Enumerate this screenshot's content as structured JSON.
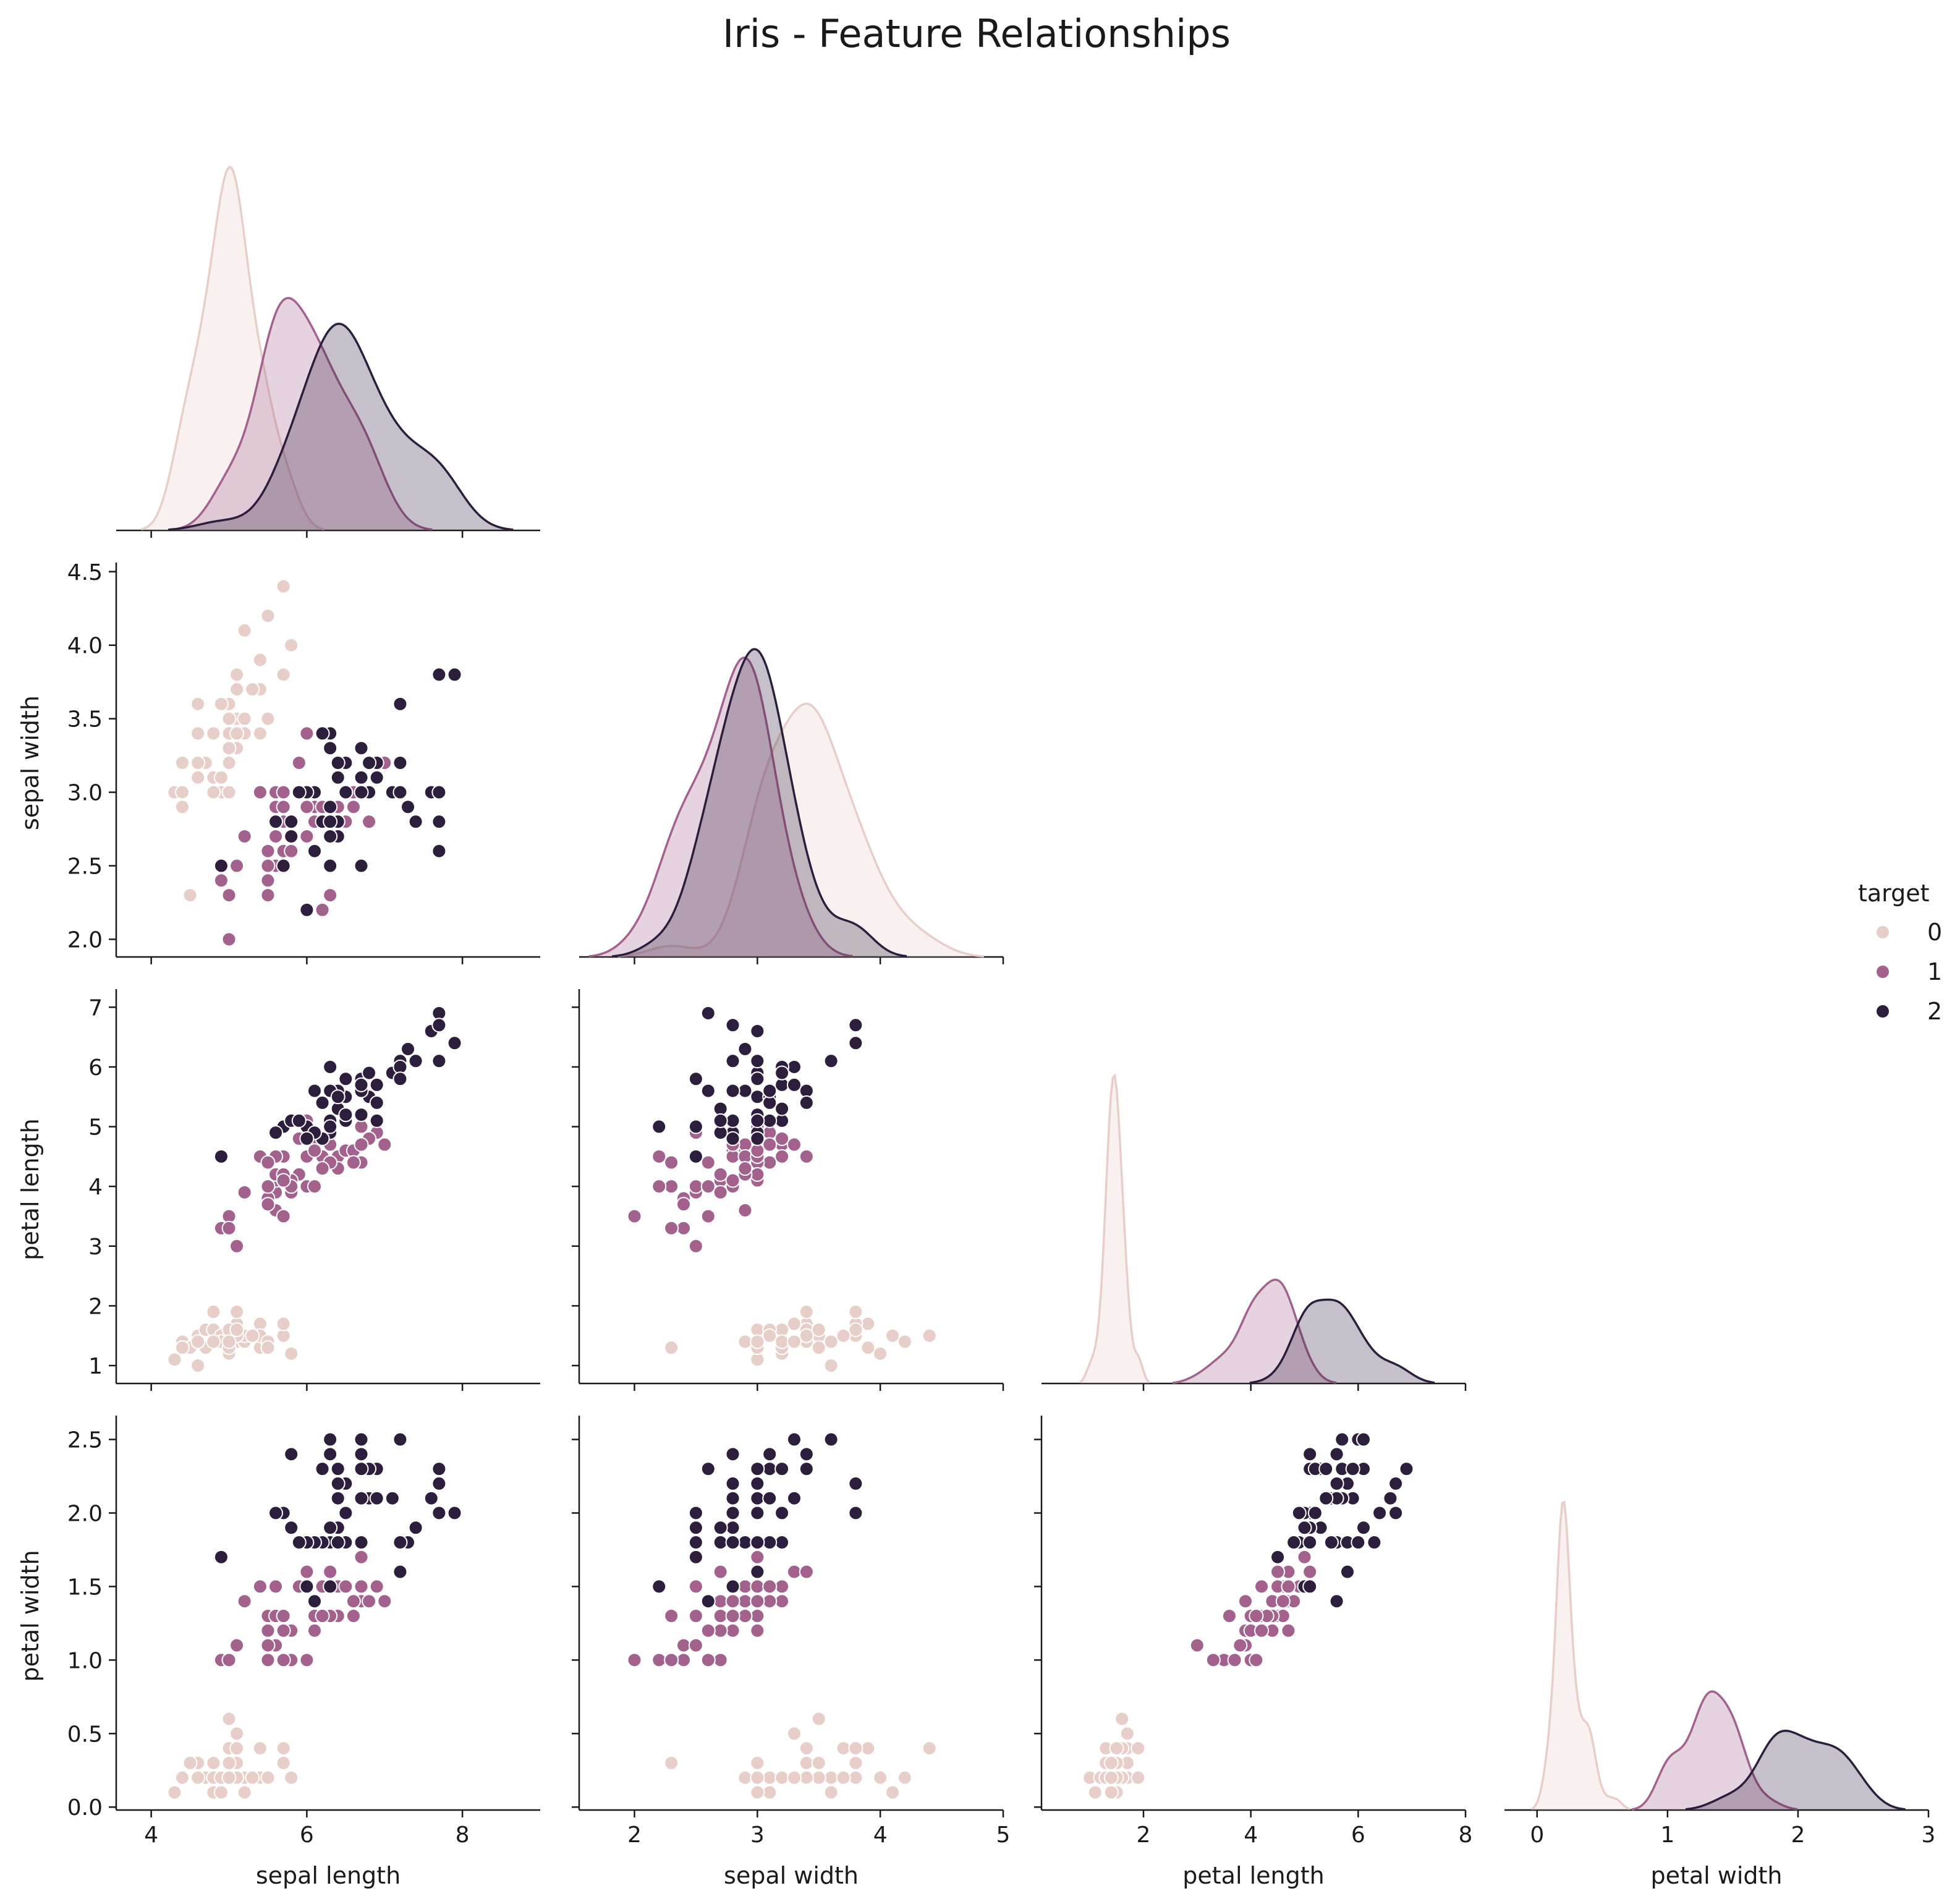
{
  "chart_data": {
    "type": "scatter",
    "title": "Iris - Feature Relationships",
    "variables": [
      "sepal length",
      "sepal width",
      "petal length",
      "petal width"
    ],
    "axis_ticks": {
      "sepal length": [
        4,
        6,
        8
      ],
      "sepal width": [
        2,
        3,
        4,
        5
      ],
      "petal length": [
        2,
        4,
        6,
        8
      ],
      "petal width": [
        0,
        1,
        2,
        3
      ]
    },
    "y_axis_ticks": {
      "sepal width": [
        "2.0",
        "2.5",
        "3.0",
        "3.5",
        "4.0",
        "4.5"
      ],
      "petal length": [
        "1",
        "2",
        "3",
        "4",
        "5",
        "6",
        "7"
      ],
      "petal width": [
        "0.0",
        "0.5",
        "1.0",
        "1.5",
        "2.0",
        "2.5"
      ]
    },
    "xlim": {
      "sepal length": [
        3.55,
        9.0
      ],
      "sepal width": [
        1.55,
        5.0
      ],
      "petal length": [
        0.1,
        8.0
      ],
      "petal width": [
        -0.25,
        3.0
      ]
    },
    "ylim": {
      "sepal width": [
        1.88,
        4.52
      ],
      "petal length": [
        0.7,
        7.2
      ],
      "petal width": [
        -0.02,
        2.62
      ]
    },
    "layout": "lower-triangle pair plot with KDE diagonal",
    "legend": {
      "title": "target",
      "position": "right",
      "entries": [
        {
          "label": "0",
          "color": "#e8cec8"
        },
        {
          "label": "1",
          "color": "#a3628e"
        },
        {
          "label": "2",
          "color": "#2d1e3e"
        }
      ]
    },
    "classes": [
      {
        "label": "0",
        "color": "#e8cec8",
        "points": [
          [
            5.1,
            3.5,
            1.4,
            0.2
          ],
          [
            4.9,
            3.0,
            1.4,
            0.2
          ],
          [
            4.7,
            3.2,
            1.3,
            0.2
          ],
          [
            4.6,
            3.1,
            1.5,
            0.2
          ],
          [
            5.0,
            3.6,
            1.4,
            0.2
          ],
          [
            5.4,
            3.9,
            1.7,
            0.4
          ],
          [
            4.6,
            3.4,
            1.4,
            0.3
          ],
          [
            5.0,
            3.4,
            1.5,
            0.2
          ],
          [
            4.4,
            2.9,
            1.4,
            0.2
          ],
          [
            4.9,
            3.1,
            1.5,
            0.1
          ],
          [
            5.4,
            3.7,
            1.5,
            0.2
          ],
          [
            4.8,
            3.4,
            1.6,
            0.2
          ],
          [
            4.8,
            3.0,
            1.4,
            0.1
          ],
          [
            4.3,
            3.0,
            1.1,
            0.1
          ],
          [
            5.8,
            4.0,
            1.2,
            0.2
          ],
          [
            5.7,
            4.4,
            1.5,
            0.4
          ],
          [
            5.4,
            3.9,
            1.3,
            0.4
          ],
          [
            5.1,
            3.5,
            1.4,
            0.3
          ],
          [
            5.7,
            3.8,
            1.7,
            0.3
          ],
          [
            5.1,
            3.8,
            1.5,
            0.3
          ],
          [
            5.4,
            3.4,
            1.7,
            0.2
          ],
          [
            5.1,
            3.7,
            1.5,
            0.4
          ],
          [
            4.6,
            3.6,
            1.0,
            0.2
          ],
          [
            5.1,
            3.3,
            1.7,
            0.5
          ],
          [
            4.8,
            3.4,
            1.9,
            0.2
          ],
          [
            5.0,
            3.0,
            1.6,
            0.2
          ],
          [
            5.0,
            3.4,
            1.6,
            0.4
          ],
          [
            5.2,
            3.5,
            1.5,
            0.2
          ],
          [
            5.2,
            3.4,
            1.4,
            0.2
          ],
          [
            4.7,
            3.2,
            1.6,
            0.2
          ],
          [
            4.8,
            3.1,
            1.6,
            0.2
          ],
          [
            5.4,
            3.4,
            1.5,
            0.4
          ],
          [
            5.2,
            4.1,
            1.5,
            0.1
          ],
          [
            5.5,
            4.2,
            1.4,
            0.2
          ],
          [
            4.9,
            3.1,
            1.5,
            0.2
          ],
          [
            5.0,
            3.2,
            1.2,
            0.2
          ],
          [
            5.5,
            3.5,
            1.3,
            0.2
          ],
          [
            4.9,
            3.6,
            1.4,
            0.1
          ],
          [
            4.4,
            3.0,
            1.3,
            0.2
          ],
          [
            5.1,
            3.4,
            1.5,
            0.2
          ],
          [
            5.0,
            3.5,
            1.3,
            0.3
          ],
          [
            4.5,
            2.3,
            1.3,
            0.3
          ],
          [
            4.4,
            3.2,
            1.3,
            0.2
          ],
          [
            5.0,
            3.5,
            1.6,
            0.6
          ],
          [
            5.1,
            3.8,
            1.9,
            0.4
          ],
          [
            4.8,
            3.0,
            1.4,
            0.3
          ],
          [
            5.1,
            3.8,
            1.6,
            0.2
          ],
          [
            4.6,
            3.2,
            1.4,
            0.2
          ],
          [
            5.3,
            3.7,
            1.5,
            0.2
          ],
          [
            5.0,
            3.3,
            1.4,
            0.2
          ]
        ]
      },
      {
        "label": "1",
        "color": "#a3628e",
        "points": [
          [
            7.0,
            3.2,
            4.7,
            1.4
          ],
          [
            6.4,
            3.2,
            4.5,
            1.5
          ],
          [
            6.9,
            3.1,
            4.9,
            1.5
          ],
          [
            5.5,
            2.3,
            4.0,
            1.3
          ],
          [
            6.5,
            2.8,
            4.6,
            1.5
          ],
          [
            5.7,
            2.8,
            4.5,
            1.3
          ],
          [
            6.3,
            3.3,
            4.7,
            1.6
          ],
          [
            4.9,
            2.4,
            3.3,
            1.0
          ],
          [
            6.6,
            2.9,
            4.6,
            1.3
          ],
          [
            5.2,
            2.7,
            3.9,
            1.4
          ],
          [
            5.0,
            2.0,
            3.5,
            1.0
          ],
          [
            5.9,
            3.0,
            4.2,
            1.5
          ],
          [
            6.0,
            2.2,
            4.0,
            1.0
          ],
          [
            6.1,
            2.9,
            4.7,
            1.4
          ],
          [
            5.6,
            2.9,
            3.6,
            1.3
          ],
          [
            6.7,
            3.1,
            4.4,
            1.4
          ],
          [
            5.6,
            3.0,
            4.5,
            1.5
          ],
          [
            5.8,
            2.7,
            4.1,
            1.0
          ],
          [
            6.2,
            2.2,
            4.5,
            1.5
          ],
          [
            5.6,
            2.5,
            3.9,
            1.1
          ],
          [
            5.9,
            3.2,
            4.8,
            1.8
          ],
          [
            6.1,
            2.8,
            4.0,
            1.3
          ],
          [
            6.3,
            2.5,
            4.9,
            1.5
          ],
          [
            6.1,
            2.8,
            4.7,
            1.2
          ],
          [
            6.4,
            2.9,
            4.3,
            1.3
          ],
          [
            6.6,
            3.0,
            4.4,
            1.4
          ],
          [
            6.8,
            2.8,
            4.8,
            1.4
          ],
          [
            6.7,
            3.0,
            5.0,
            1.7
          ],
          [
            6.0,
            2.9,
            4.5,
            1.5
          ],
          [
            5.7,
            2.6,
            3.5,
            1.0
          ],
          [
            5.5,
            2.4,
            3.8,
            1.1
          ],
          [
            5.5,
            2.4,
            3.7,
            1.0
          ],
          [
            5.8,
            2.7,
            3.9,
            1.2
          ],
          [
            6.0,
            2.7,
            5.1,
            1.6
          ],
          [
            5.4,
            3.0,
            4.5,
            1.5
          ],
          [
            6.0,
            3.4,
            4.5,
            1.6
          ],
          [
            6.7,
            3.1,
            4.7,
            1.5
          ],
          [
            6.3,
            2.3,
            4.4,
            1.3
          ],
          [
            5.6,
            3.0,
            4.1,
            1.3
          ],
          [
            5.5,
            2.5,
            4.0,
            1.3
          ],
          [
            5.5,
            2.6,
            4.4,
            1.2
          ],
          [
            6.1,
            3.0,
            4.6,
            1.4
          ],
          [
            5.8,
            2.6,
            4.0,
            1.2
          ],
          [
            5.0,
            2.3,
            3.3,
            1.0
          ],
          [
            5.6,
            2.7,
            4.2,
            1.3
          ],
          [
            5.7,
            3.0,
            4.2,
            1.2
          ],
          [
            5.7,
            2.9,
            4.2,
            1.3
          ],
          [
            6.2,
            2.9,
            4.3,
            1.3
          ],
          [
            5.1,
            2.5,
            3.0,
            1.1
          ],
          [
            5.7,
            2.8,
            4.1,
            1.3
          ]
        ]
      },
      {
        "label": "2",
        "color": "#2d1e3e",
        "points": [
          [
            6.3,
            3.3,
            6.0,
            2.5
          ],
          [
            5.8,
            2.7,
            5.1,
            1.9
          ],
          [
            7.1,
            3.0,
            5.9,
            2.1
          ],
          [
            6.3,
            2.9,
            5.6,
            1.8
          ],
          [
            6.5,
            3.0,
            5.8,
            2.2
          ],
          [
            7.6,
            3.0,
            6.6,
            2.1
          ],
          [
            4.9,
            2.5,
            4.5,
            1.7
          ],
          [
            7.3,
            2.9,
            6.3,
            1.8
          ],
          [
            6.7,
            2.5,
            5.8,
            1.8
          ],
          [
            7.2,
            3.6,
            6.1,
            2.5
          ],
          [
            6.5,
            3.2,
            5.1,
            2.0
          ],
          [
            6.4,
            2.7,
            5.3,
            1.9
          ],
          [
            6.8,
            3.0,
            5.5,
            2.1
          ],
          [
            5.7,
            2.5,
            5.0,
            2.0
          ],
          [
            5.8,
            2.8,
            5.1,
            2.4
          ],
          [
            6.4,
            3.2,
            5.3,
            2.3
          ],
          [
            6.5,
            3.0,
            5.5,
            1.8
          ],
          [
            7.7,
            3.8,
            6.7,
            2.2
          ],
          [
            7.7,
            2.6,
            6.9,
            2.3
          ],
          [
            6.0,
            2.2,
            5.0,
            1.5
          ],
          [
            6.9,
            3.2,
            5.7,
            2.3
          ],
          [
            5.6,
            2.8,
            4.9,
            2.0
          ],
          [
            7.7,
            2.8,
            6.7,
            2.0
          ],
          [
            6.3,
            2.7,
            4.9,
            1.8
          ],
          [
            6.7,
            3.3,
            5.7,
            2.1
          ],
          [
            7.2,
            3.2,
            6.0,
            1.8
          ],
          [
            6.2,
            2.8,
            4.8,
            1.8
          ],
          [
            6.1,
            3.0,
            4.9,
            1.8
          ],
          [
            6.4,
            2.8,
            5.6,
            2.1
          ],
          [
            7.2,
            3.0,
            5.8,
            1.6
          ],
          [
            7.4,
            2.8,
            6.1,
            1.9
          ],
          [
            7.9,
            3.8,
            6.4,
            2.0
          ],
          [
            6.4,
            2.8,
            5.6,
            2.2
          ],
          [
            6.3,
            2.8,
            5.1,
            1.5
          ],
          [
            6.1,
            2.6,
            5.6,
            1.4
          ],
          [
            7.7,
            3.0,
            6.1,
            2.3
          ],
          [
            6.3,
            3.4,
            5.6,
            2.4
          ],
          [
            6.4,
            3.1,
            5.5,
            1.8
          ],
          [
            6.0,
            3.0,
            4.8,
            1.8
          ],
          [
            6.9,
            3.1,
            5.4,
            2.1
          ],
          [
            6.7,
            3.1,
            5.6,
            2.4
          ],
          [
            6.9,
            3.1,
            5.1,
            2.3
          ],
          [
            5.8,
            2.7,
            5.1,
            1.9
          ],
          [
            6.8,
            3.2,
            5.9,
            2.3
          ],
          [
            6.7,
            3.3,
            5.7,
            2.5
          ],
          [
            6.7,
            3.0,
            5.2,
            2.3
          ],
          [
            6.3,
            2.5,
            5.0,
            1.9
          ],
          [
            6.5,
            3.0,
            5.2,
            2.0
          ],
          [
            6.2,
            3.4,
            5.4,
            2.3
          ],
          [
            5.9,
            3.0,
            5.1,
            1.8
          ]
        ]
      }
    ]
  }
}
